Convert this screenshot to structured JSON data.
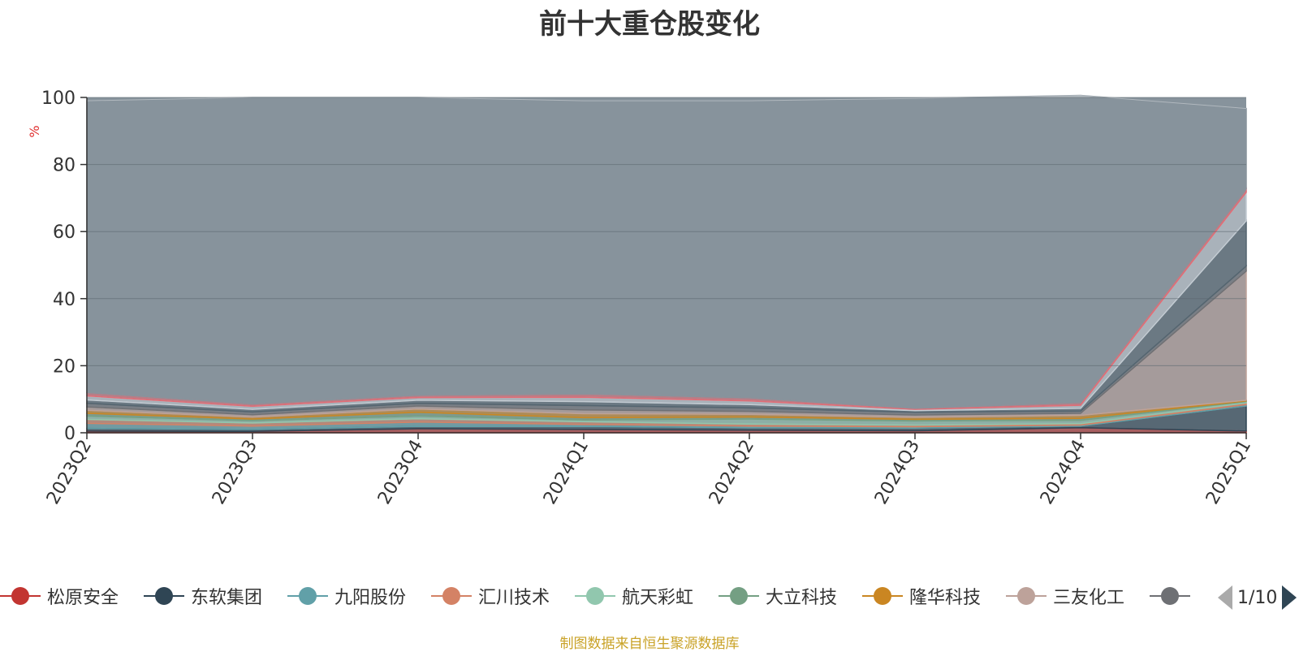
{
  "chart_data": {
    "type": "area",
    "title": "前十大重仓股变化",
    "ylabel": "%",
    "ylim": [
      0,
      100
    ],
    "y_ticks": [
      0,
      20,
      40,
      60,
      80,
      100
    ],
    "categories": [
      "2023Q2",
      "2023Q3",
      "2023Q4",
      "2024Q1",
      "2024Q2",
      "2024Q3",
      "2024Q4",
      "2025Q1"
    ],
    "stacked": true,
    "series": [
      {
        "name": "松原安全",
        "color": "#c23531",
        "values": [
          0.5,
          0.4,
          1.2,
          1.0,
          0.8,
          0.6,
          1.5,
          0.5
        ]
      },
      {
        "name": "东软集团",
        "color": "#2f4554",
        "values": [
          0.8,
          0.6,
          0.7,
          0.9,
          0.7,
          0.8,
          0.5,
          7.5
        ]
      },
      {
        "name": "九阳股份",
        "color": "#61a0a8",
        "values": [
          1.5,
          1.0,
          1.3,
          0.6,
          0.5,
          0.4,
          0.3,
          0.4
        ]
      },
      {
        "name": "汇川技术",
        "color": "#d48265",
        "values": [
          1.2,
          0.9,
          1.0,
          0.8,
          0.6,
          0.5,
          0.4,
          0.5
        ]
      },
      {
        "name": "航天彩虹",
        "color": "#91c7ae",
        "values": [
          1.0,
          0.7,
          0.8,
          0.5,
          1.5,
          1.2,
          1.0,
          0.4
        ]
      },
      {
        "name": "大立科技",
        "color": "#749f83",
        "values": [
          0.8,
          0.5,
          1.1,
          0.7,
          0.6,
          0.5,
          0.6,
          0.2
        ]
      },
      {
        "name": "隆华科技",
        "color": "#ca8622",
        "values": [
          0.9,
          0.6,
          1.0,
          1.2,
          0.8,
          0.6,
          0.9,
          0.2
        ]
      },
      {
        "name": "三友化工",
        "color": "#bda29a",
        "values": [
          1.0,
          0.7,
          0.9,
          1.1,
          0.9,
          0.7,
          0.6,
          38.5
        ]
      },
      {
        "name": "",
        "color": "#6e7074",
        "values": [
          1.1,
          0.8,
          0.8,
          1.3,
          1.0,
          0.8,
          0.7,
          1.5
        ]
      },
      {
        "name": "",
        "color": "#546570",
        "values": [
          1.0,
          0.8,
          0.9,
          1.2,
          1.0,
          0.5,
          0.8,
          13.5
        ]
      },
      {
        "name": "",
        "color": "#c4ccd3",
        "values": [
          1.2,
          0.9,
          0.8,
          1.3,
          1.1,
          0.4,
          0.9,
          8.5
        ]
      },
      {
        "name": "",
        "color": "#e06c75",
        "values": [
          1.0,
          0.7,
          0.7,
          1.0,
          0.9,
          0.3,
          0.8,
          1.0
        ]
      },
      {
        "name": "",
        "color": "#87939c",
        "values": [
          87.0,
          91.4,
          88.8,
          87.4,
          88.6,
          92.4,
          91.6,
          24.0
        ]
      }
    ]
  },
  "legend": {
    "page_text": "1/10",
    "items": [
      {
        "label": "松原安全",
        "color": "#c23531"
      },
      {
        "label": "东软集团",
        "color": "#2f4554"
      },
      {
        "label": "九阳股份",
        "color": "#61a0a8"
      },
      {
        "label": "汇川技术",
        "color": "#d48265"
      },
      {
        "label": "航天彩虹",
        "color": "#91c7ae"
      },
      {
        "label": "大立科技",
        "color": "#749f83"
      },
      {
        "label": "隆华科技",
        "color": "#ca8622"
      },
      {
        "label": "三友化工",
        "color": "#bda29a"
      },
      {
        "label": "",
        "color": "#6e7074"
      }
    ]
  },
  "source_note": "制图数据来自恒生聚源数据库"
}
